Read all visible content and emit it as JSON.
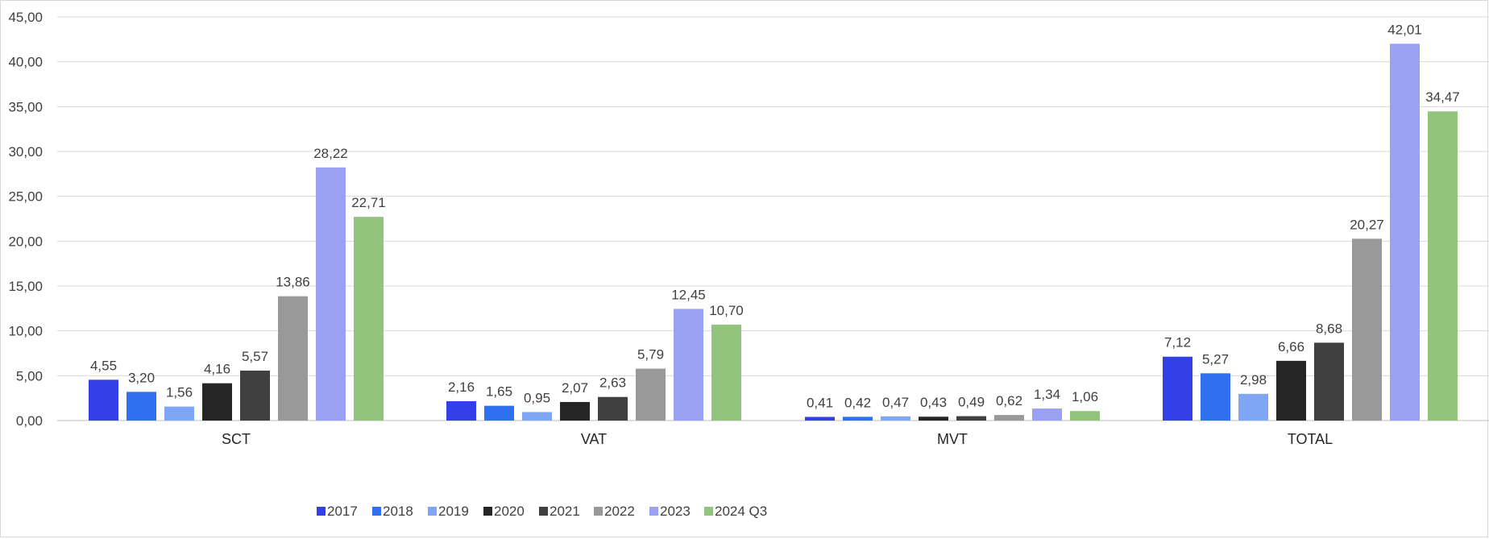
{
  "chart_data": {
    "type": "bar",
    "title": "",
    "xlabel": "",
    "ylabel": "",
    "ylim": [
      0,
      45
    ],
    "y_ticks": [
      "0,00",
      "5,00",
      "10,00",
      "15,00",
      "20,00",
      "25,00",
      "30,00",
      "35,00",
      "40,00",
      "45,00"
    ],
    "grid": true,
    "legend_position": "bottom",
    "categories": [
      "SCT",
      "VAT",
      "MVT",
      "TOTAL"
    ],
    "series": [
      {
        "name": "2017",
        "color": "#3340e8",
        "values": [
          4.55,
          2.16,
          0.41,
          7.12
        ],
        "labels": [
          "4,55",
          "2,16",
          "0,41",
          "7,12"
        ]
      },
      {
        "name": "2018",
        "color": "#2f6ff0",
        "values": [
          3.2,
          1.65,
          0.42,
          5.27
        ],
        "labels": [
          "3,20",
          "1,65",
          "0,42",
          "5,27"
        ]
      },
      {
        "name": "2019",
        "color": "#7ea6f5",
        "values": [
          1.56,
          0.95,
          0.47,
          2.98
        ],
        "labels": [
          "1,56",
          "0,95",
          "0,47",
          "2,98"
        ]
      },
      {
        "name": "2020",
        "color": "#262626",
        "values": [
          4.16,
          2.07,
          0.43,
          6.66
        ],
        "labels": [
          "4,16",
          "2,07",
          "0,43",
          "6,66"
        ]
      },
      {
        "name": "2021",
        "color": "#404040",
        "values": [
          5.57,
          2.63,
          0.49,
          8.68
        ],
        "labels": [
          "5,57",
          "2,63",
          "0,49",
          "8,68"
        ]
      },
      {
        "name": "2022",
        "color": "#999999",
        "values": [
          13.86,
          5.79,
          0.62,
          20.27
        ],
        "labels": [
          "13,86",
          "5,79",
          "0,62",
          "20,27"
        ]
      },
      {
        "name": "2023",
        "color": "#9aa0f2",
        "values": [
          28.22,
          12.45,
          1.34,
          42.01
        ],
        "labels": [
          "28,22",
          "12,45",
          "1,34",
          "42,01"
        ]
      },
      {
        "name": "2024 Q3",
        "color": "#93c47d",
        "values": [
          22.71,
          10.7,
          1.06,
          34.47
        ],
        "labels": [
          "22,71",
          "10,70",
          "1,06",
          "34,47"
        ]
      }
    ]
  }
}
